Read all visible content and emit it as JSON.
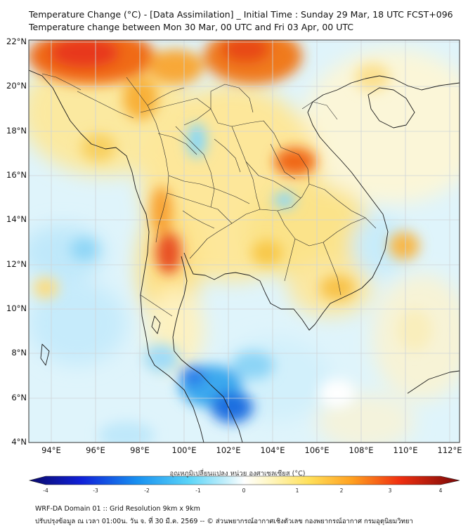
{
  "title": {
    "line1": "Temperature Change (°C) - [Data Assimilation] _ Initial Time : Sunday 29 Mar, 18 UTC FCST+096",
    "line2": "Temperature change between Mon 30 Mar, 00 UTC and Fri 03 Apr, 00 UTC"
  },
  "map": {
    "lon_range": [
      93,
      112.5
    ],
    "lat_range": [
      4,
      22.2
    ],
    "lat_labels": [
      "22°N",
      "20°N",
      "18°N",
      "16°N",
      "14°N",
      "12°N",
      "10°N",
      "8°N",
      "6°N",
      "4°N"
    ],
    "lon_labels": [
      "94°E",
      "96°E",
      "98°E",
      "100°E",
      "102°E",
      "104°E",
      "106°E",
      "108°E",
      "110°E",
      "112°E"
    ]
  },
  "colorbar": {
    "title": "อุณหภูมิเปลี่ยนแปลง หน่วย องศาเซลเซียส (°C)",
    "min": -4,
    "max": 4,
    "tick_labels": [
      "-4",
      "-3",
      "-2",
      "-1",
      "0",
      "1",
      "2",
      "3",
      "4"
    ]
  },
  "footer": {
    "line1": "WRF-DA Domain 01 :: Grid Resolution 9km x 9km",
    "line2": "ปรับปรุงข้อมูล ณ เวลา 01:00น. วัน จ. ที่ 30 มี.ค. 2569 -- © ส่วนพยากรณ์อากาศเชิงตัวเลข กองพยากรณ์อากาศ กรมอุตุนิยมวิทยา"
  },
  "colors": {
    "frame": "#333333",
    "coast": "#1a1a1a",
    "border": "#2b2b2b"
  }
}
